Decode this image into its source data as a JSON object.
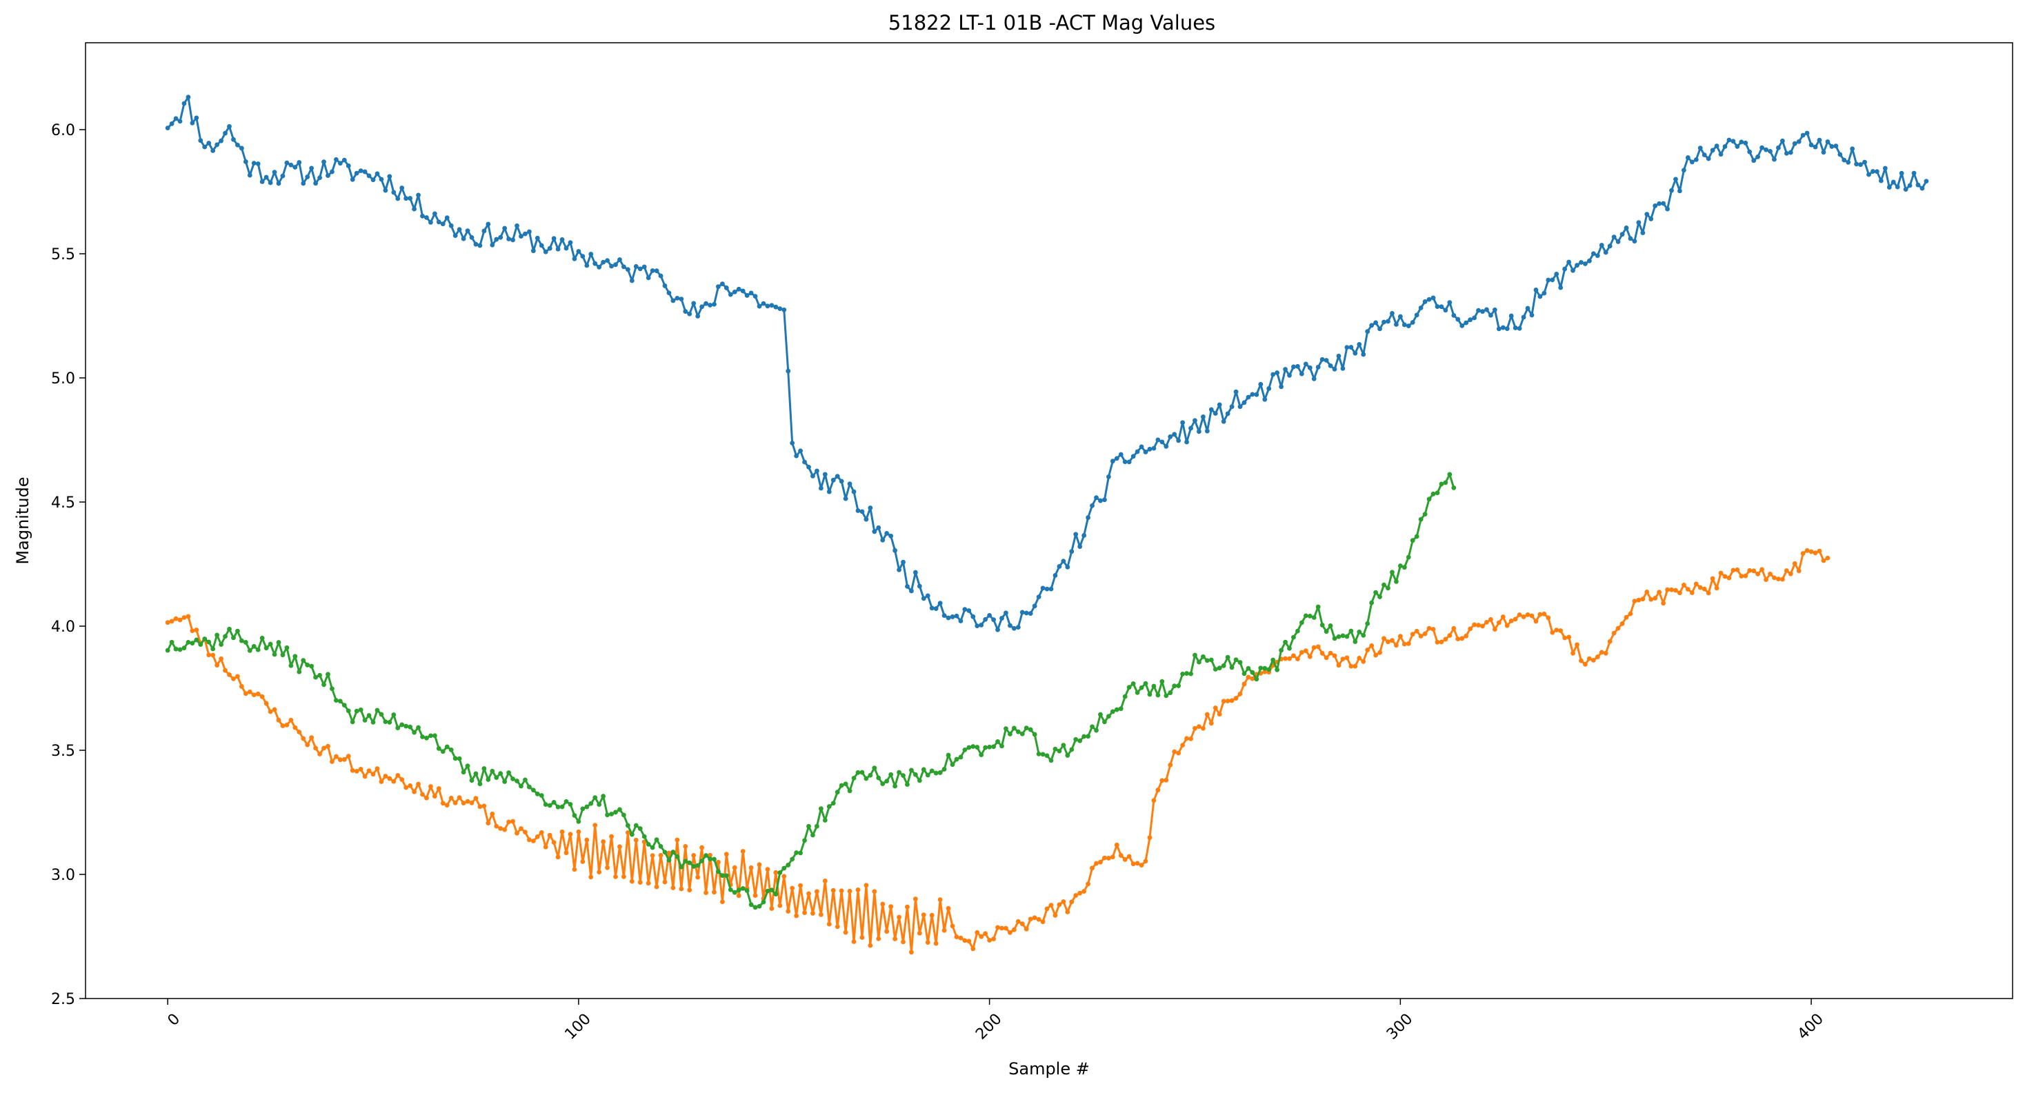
{
  "chart_data": {
    "type": "line",
    "title": "51822 LT-1 01B -ACT Mag Values",
    "xlabel": "Sample #",
    "ylabel": "Magnitude",
    "xlim": [
      -20,
      449
    ],
    "ylim": [
      2.5,
      6.35
    ],
    "x_ticks": [
      "0",
      "100",
      "200",
      "300",
      "400"
    ],
    "y_ticks": [
      "2.5",
      "3.0",
      "3.5",
      "4.0",
      "4.5",
      "5.0",
      "5.5",
      "6.0"
    ],
    "tick_label_rotation": -45,
    "markers": "small-dots",
    "series": [
      {
        "color": "#1f77b4",
        "length": 429,
        "x": [
          0,
          5,
          10,
          15,
          20,
          25,
          30,
          35,
          40,
          45,
          50,
          55,
          60,
          65,
          70,
          75,
          80,
          85,
          90,
          95,
          100,
          105,
          110,
          115,
          120,
          125,
          130,
          135,
          140,
          145,
          150,
          152,
          155,
          160,
          165,
          170,
          175,
          180,
          185,
          190,
          195,
          200,
          205,
          210,
          215,
          220,
          225,
          230,
          235,
          240,
          245,
          250,
          255,
          260,
          265,
          270,
          275,
          280,
          285,
          290,
          295,
          300,
          305,
          310,
          315,
          320,
          325,
          330,
          335,
          340,
          345,
          350,
          355,
          360,
          365,
          370,
          375,
          380,
          385,
          390,
          395,
          400,
          405,
          410,
          415,
          420,
          425,
          428
        ],
        "y": [
          6.03,
          6.1,
          5.92,
          6.0,
          5.85,
          5.82,
          5.83,
          5.82,
          5.85,
          5.83,
          5.82,
          5.78,
          5.7,
          5.66,
          5.6,
          5.57,
          5.58,
          5.57,
          5.55,
          5.52,
          5.5,
          5.47,
          5.44,
          5.42,
          5.45,
          5.28,
          5.25,
          5.38,
          5.35,
          5.3,
          5.25,
          4.76,
          4.65,
          4.58,
          4.55,
          4.45,
          4.36,
          4.2,
          4.13,
          4.06,
          4.05,
          4.0,
          4.03,
          4.05,
          4.16,
          4.3,
          4.45,
          4.62,
          4.7,
          4.72,
          4.76,
          4.8,
          4.84,
          4.9,
          4.93,
          4.98,
          5.02,
          5.04,
          5.06,
          5.12,
          5.2,
          5.24,
          5.27,
          5.3,
          5.25,
          5.25,
          5.22,
          5.25,
          5.35,
          5.42,
          5.48,
          5.53,
          5.57,
          5.62,
          5.7,
          5.86,
          5.9,
          5.93,
          5.92,
          5.92,
          5.93,
          5.95,
          5.9,
          5.88,
          5.86,
          5.8,
          5.78,
          5.8
        ],
        "noise": 0.045,
        "seed": 11
      },
      {
        "color": "#ff7f0e",
        "length": 405,
        "x": [
          0,
          5,
          10,
          15,
          20,
          25,
          30,
          35,
          40,
          45,
          50,
          55,
          60,
          65,
          70,
          75,
          80,
          85,
          90,
          95,
          100,
          105,
          110,
          115,
          120,
          125,
          130,
          135,
          140,
          145,
          150,
          155,
          160,
          165,
          170,
          175,
          180,
          185,
          190,
          195,
          200,
          205,
          210,
          215,
          220,
          225,
          230,
          235,
          238,
          240,
          245,
          250,
          255,
          260,
          265,
          270,
          275,
          280,
          285,
          290,
          295,
          300,
          305,
          310,
          315,
          320,
          325,
          330,
          335,
          340,
          345,
          350,
          355,
          360,
          365,
          370,
          375,
          380,
          385,
          390,
          395,
          400,
          404
        ],
        "y": [
          4.03,
          4.02,
          3.9,
          3.82,
          3.74,
          3.66,
          3.6,
          3.53,
          3.48,
          3.44,
          3.4,
          3.4,
          3.36,
          3.32,
          3.3,
          3.28,
          3.2,
          3.18,
          3.15,
          3.12,
          3.1,
          3.08,
          3.06,
          3.04,
          3.02,
          3.05,
          3.03,
          3.0,
          2.98,
          2.96,
          2.93,
          2.9,
          2.88,
          2.86,
          2.84,
          2.82,
          2.8,
          2.8,
          2.8,
          2.72,
          2.76,
          2.78,
          2.8,
          2.85,
          2.88,
          3.0,
          3.1,
          3.07,
          3.05,
          3.3,
          3.48,
          3.58,
          3.65,
          3.72,
          3.8,
          3.85,
          3.88,
          3.9,
          3.87,
          3.86,
          3.92,
          3.95,
          3.97,
          3.96,
          3.98,
          4.0,
          4.02,
          4.05,
          4.03,
          3.95,
          3.86,
          3.92,
          4.05,
          4.12,
          4.12,
          4.15,
          4.16,
          4.2,
          4.2,
          4.2,
          4.22,
          4.3,
          4.28
        ],
        "noise": 0.03,
        "zigzag": {
          "from": 95,
          "to": 190,
          "amplitude": 0.07
        },
        "seed": 23
      },
      {
        "color": "#2ca02c",
        "length": 314,
        "x": [
          0,
          5,
          10,
          15,
          20,
          25,
          30,
          35,
          40,
          45,
          50,
          55,
          60,
          65,
          70,
          75,
          80,
          85,
          90,
          95,
          100,
          105,
          110,
          115,
          120,
          125,
          130,
          135,
          140,
          145,
          150,
          155,
          160,
          165,
          170,
          175,
          180,
          185,
          190,
          195,
          200,
          205,
          210,
          215,
          220,
          225,
          230,
          235,
          240,
          245,
          250,
          255,
          260,
          265,
          270,
          275,
          280,
          285,
          290,
          295,
          300,
          305,
          310,
          313
        ],
        "y": [
          3.92,
          3.95,
          3.93,
          3.97,
          3.93,
          3.92,
          3.87,
          3.82,
          3.76,
          3.64,
          3.63,
          3.62,
          3.6,
          3.55,
          3.45,
          3.38,
          3.42,
          3.38,
          3.32,
          3.3,
          3.22,
          3.3,
          3.23,
          3.15,
          3.1,
          3.05,
          3.07,
          3.0,
          2.93,
          2.88,
          3.0,
          3.15,
          3.25,
          3.35,
          3.42,
          3.38,
          3.38,
          3.42,
          3.45,
          3.5,
          3.5,
          3.58,
          3.55,
          3.47,
          3.5,
          3.6,
          3.65,
          3.75,
          3.75,
          3.75,
          3.85,
          3.86,
          3.85,
          3.82,
          3.85,
          3.98,
          4.05,
          3.95,
          3.95,
          4.15,
          4.22,
          4.4,
          4.6,
          4.57
        ],
        "noise": 0.035,
        "seed": 37
      }
    ]
  }
}
